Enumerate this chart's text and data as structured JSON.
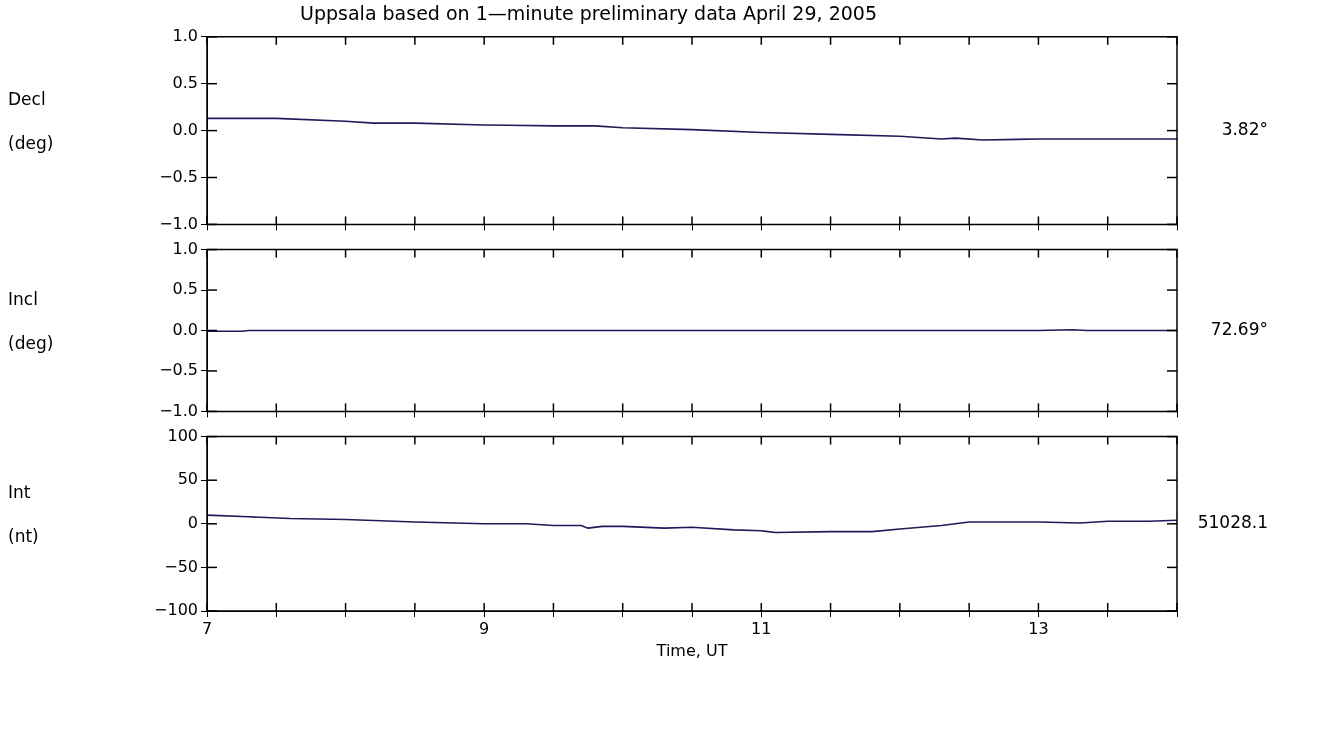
{
  "chart_data": [
    {
      "type": "line",
      "title": "Uppsala based on 1—minute preliminary data April 29, 2005",
      "ylabel": "Decl (deg)",
      "annotations": [
        "3.82°"
      ],
      "x": [
        7,
        7.5,
        8,
        8.2,
        8.5,
        9,
        9.5,
        9.8,
        10,
        10.5,
        11,
        11.5,
        12,
        12.3,
        12.4,
        12.6,
        13,
        13.5,
        14
      ],
      "series": [
        {
          "color": "#1c1c5a",
          "values": [
            0.13,
            0.13,
            0.1,
            0.08,
            0.08,
            0.06,
            0.05,
            0.05,
            0.03,
            0.01,
            -0.02,
            -0.04,
            -0.06,
            -0.09,
            -0.08,
            -0.1,
            -0.09,
            -0.09,
            -0.09
          ]
        }
      ],
      "xlim": [
        7,
        14
      ],
      "ylim": [
        -1,
        1
      ],
      "xticks": [
        {
          "value": 7,
          "label": null
        },
        {
          "value": 7.5,
          "label": null
        },
        {
          "value": 8,
          "label": null
        },
        {
          "value": 8.5,
          "label": null
        },
        {
          "value": 9,
          "label": null
        },
        {
          "value": 9.5,
          "label": null
        },
        {
          "value": 10,
          "label": null
        },
        {
          "value": 10.5,
          "label": null
        },
        {
          "value": 11,
          "label": null
        },
        {
          "value": 11.5,
          "label": null
        },
        {
          "value": 12,
          "label": null
        },
        {
          "value": 12.5,
          "label": null
        },
        {
          "value": 13,
          "label": null
        },
        {
          "value": 13.5,
          "label": null
        },
        {
          "value": 14,
          "label": null
        }
      ],
      "yticks": [
        {
          "value": -1,
          "label": "−1.0"
        },
        {
          "value": -0.5,
          "label": "−0.5"
        },
        {
          "value": 0,
          "label": "0.0"
        },
        {
          "value": 0.5,
          "label": "0.5"
        },
        {
          "value": 1,
          "label": "1.0"
        }
      ],
      "tick_labels": "y",
      "grid": false,
      "legend": false,
      "marker": "none"
    },
    {
      "type": "line",
      "ylabel": "Incl (deg)",
      "annotations": [
        "72.69°"
      ],
      "x": [
        7,
        7.25,
        7.3,
        8,
        9,
        10,
        11,
        12,
        13,
        13.25,
        13.35,
        13.5,
        14
      ],
      "series": [
        {
          "color": "#1c1c5a",
          "values": [
            -0.01,
            -0.01,
            0,
            0,
            0,
            0,
            0,
            0,
            0,
            0.01,
            0,
            0,
            0
          ]
        }
      ],
      "xlim": [
        7,
        14
      ],
      "ylim": [
        -1,
        1
      ],
      "xticks": [
        {
          "value": 7,
          "label": null
        },
        {
          "value": 7.5,
          "label": null
        },
        {
          "value": 8,
          "label": null
        },
        {
          "value": 8.5,
          "label": null
        },
        {
          "value": 9,
          "label": null
        },
        {
          "value": 9.5,
          "label": null
        },
        {
          "value": 10,
          "label": null
        },
        {
          "value": 10.5,
          "label": null
        },
        {
          "value": 11,
          "label": null
        },
        {
          "value": 11.5,
          "label": null
        },
        {
          "value": 12,
          "label": null
        },
        {
          "value": 12.5,
          "label": null
        },
        {
          "value": 13,
          "label": null
        },
        {
          "value": 13.5,
          "label": null
        },
        {
          "value": 14,
          "label": null
        }
      ],
      "yticks": [
        {
          "value": -1,
          "label": "−1.0"
        },
        {
          "value": -0.5,
          "label": "−0.5"
        },
        {
          "value": 0,
          "label": "0.0"
        },
        {
          "value": 0.5,
          "label": "0.5"
        },
        {
          "value": 1,
          "label": "1.0"
        }
      ],
      "tick_labels": "y",
      "grid": false,
      "legend": false,
      "marker": "none"
    },
    {
      "type": "line",
      "ylabel": "Int (nt)",
      "xlabel": "Time, UT",
      "annotations": [
        "51028.1"
      ],
      "x": [
        7,
        7.3,
        7.6,
        8,
        8.5,
        9,
        9.3,
        9.5,
        9.7,
        9.75,
        9.85,
        10,
        10.3,
        10.5,
        10.8,
        11,
        11.1,
        11.5,
        11.8,
        12,
        12.3,
        12.5,
        12.8,
        13,
        13.3,
        13.5,
        13.8,
        14
      ],
      "series": [
        {
          "color": "#1c1c5a",
          "values": [
            10,
            8,
            6,
            5,
            2,
            0,
            0,
            -2,
            -2,
            -5,
            -3,
            -3,
            -5,
            -4,
            -7,
            -8,
            -10,
            -9,
            -9,
            -6,
            -2,
            2,
            2,
            2,
            1,
            3,
            3,
            4
          ]
        }
      ],
      "xlim": [
        7,
        14
      ],
      "ylim": [
        -100,
        100
      ],
      "xticks": [
        7,
        {
          "value": 7.5,
          "label": null
        },
        {
          "value": 8,
          "label": null
        },
        {
          "value": 8.5,
          "label": null
        },
        9,
        {
          "value": 9.5,
          "label": null
        },
        {
          "value": 10,
          "label": null
        },
        {
          "value": 10.5,
          "label": null
        },
        11,
        {
          "value": 11.5,
          "label": null
        },
        {
          "value": 12,
          "label": null
        },
        {
          "value": 12.5,
          "label": null
        },
        13,
        {
          "value": 13.5,
          "label": null
        },
        {
          "value": 14,
          "label": null
        }
      ],
      "yticks": [
        {
          "value": -100,
          "label": "−100"
        },
        {
          "value": -50,
          "label": "−50"
        },
        0,
        50,
        100
      ],
      "grid": false,
      "legend": false,
      "marker": "none"
    }
  ]
}
